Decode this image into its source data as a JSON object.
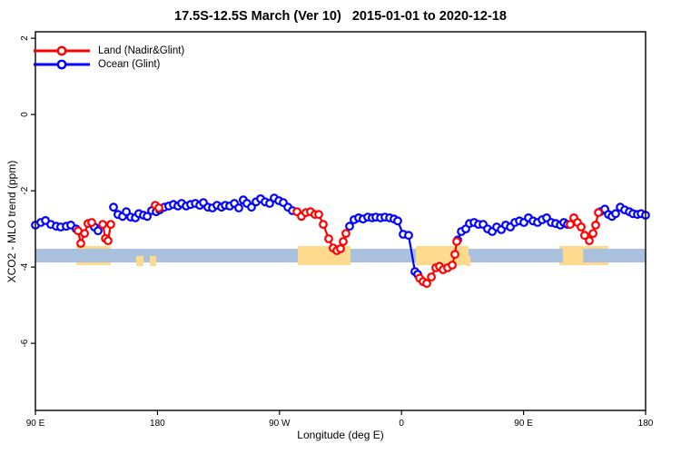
{
  "title": "17.5S-12.5S March (Ver 10)   2015-01-01 to 2020-12-18",
  "legend": {
    "items": [
      {
        "label": "Land (Nadir&Glint)",
        "color": "#ff0000"
      },
      {
        "label": "Ocean (Glint)",
        "color": "#0000ff"
      }
    ]
  },
  "chart_data": {
    "type": "line",
    "title": "17.5S-12.5S March (Ver 10)   2015-01-01 to 2020-12-18",
    "xlabel": "Longitude (deg E)",
    "ylabel": "XCO2 - MLO trend (ppm)",
    "xlim": [
      90,
      540
    ],
    "ylim": [
      -7.76,
      2.17
    ],
    "grid": false,
    "legend_position": "top-left",
    "x_ticks": [
      {
        "value": 90,
        "label": "90 E"
      },
      {
        "value": 180,
        "label": "180"
      },
      {
        "value": 270,
        "label": "90 W"
      },
      {
        "value": 360,
        "label": "0"
      },
      {
        "value": 450,
        "label": "90 E"
      },
      {
        "value": 540,
        "label": "180"
      }
    ],
    "y_ticks": [
      {
        "value": 2,
        "label": "2"
      },
      {
        "value": 0,
        "label": "0"
      },
      {
        "value": -2,
        "label": "-2"
      },
      {
        "value": -4,
        "label": "-4"
      },
      {
        "value": -6,
        "label": "-6"
      }
    ],
    "band": {
      "ocean_color": "#aac1dd",
      "land_color": "#fdda8d",
      "top": -3.52,
      "bottom": -3.88,
      "land_under": [
        [
          120.1,
          145.6
        ],
        [
          476.4,
          512.6
        ]
      ],
      "land_over": [
        [
          283.5,
          322.4
        ],
        [
          370.6,
          409.4
        ],
        [
          479.0,
          494.0
        ]
      ],
      "slivers": [
        [
          164.3,
          169.7
        ],
        [
          174.4,
          179.1
        ],
        [
          407.8,
          411.0
        ]
      ]
    },
    "series": [
      {
        "name": "Ocean (Glint)",
        "color": "#0000ff",
        "segments": [
          [
            [
              90.0,
              -2.9
            ],
            [
              94.0,
              -2.83
            ],
            [
              97.4,
              -2.78
            ],
            [
              101.4,
              -2.88
            ],
            [
              105.4,
              -2.93
            ],
            [
              108.7,
              -2.95
            ],
            [
              112.8,
              -2.93
            ],
            [
              116.1,
              -2.9
            ],
            [
              120.1,
              -3.0
            ]
          ],
          [
            [
              133.5,
              -2.95
            ],
            [
              136.2,
              -3.05
            ]
          ],
          [
            [
              147.6,
              -2.43
            ],
            [
              150.9,
              -2.62
            ],
            [
              154.3,
              -2.67
            ],
            [
              157.0,
              -2.55
            ],
            [
              160.3,
              -2.69
            ],
            [
              163.7,
              -2.71
            ],
            [
              166.3,
              -2.6
            ],
            [
              169.7,
              -2.64
            ],
            [
              172.4,
              -2.67
            ],
            [
              175.7,
              -2.52
            ],
            [
              179.1,
              -2.55
            ],
            [
              181.7,
              -2.5
            ],
            [
              185.1,
              -2.43
            ],
            [
              188.4,
              -2.4
            ],
            [
              191.8,
              -2.36
            ],
            [
              195.1,
              -2.4
            ],
            [
              197.8,
              -2.33
            ],
            [
              201.2,
              -2.4
            ],
            [
              204.5,
              -2.36
            ],
            [
              207.9,
              -2.33
            ],
            [
              211.2,
              -2.38
            ],
            [
              213.9,
              -2.31
            ],
            [
              217.2,
              -2.43
            ],
            [
              220.6,
              -2.45
            ],
            [
              223.9,
              -2.38
            ],
            [
              227.3,
              -2.43
            ],
            [
              230.0,
              -2.38
            ],
            [
              233.3,
              -2.4
            ],
            [
              236.7,
              -2.33
            ],
            [
              240.0,
              -2.45
            ],
            [
              243.3,
              -2.24
            ],
            [
              246.0,
              -2.33
            ],
            [
              249.4,
              -2.43
            ],
            [
              252.7,
              -2.29
            ],
            [
              256.1,
              -2.21
            ],
            [
              259.4,
              -2.29
            ],
            [
              262.8,
              -2.33
            ],
            [
              266.1,
              -2.19
            ],
            [
              269.5,
              -2.26
            ],
            [
              272.8,
              -2.31
            ],
            [
              276.2,
              -2.43
            ],
            [
              279.5,
              -2.52
            ]
          ],
          [
            [
              321.7,
              -2.93
            ],
            [
              325.0,
              -2.76
            ],
            [
              328.4,
              -2.71
            ],
            [
              331.7,
              -2.74
            ],
            [
              335.1,
              -2.69
            ],
            [
              338.4,
              -2.71
            ],
            [
              341.1,
              -2.69
            ],
            [
              344.5,
              -2.71
            ],
            [
              347.8,
              -2.69
            ],
            [
              351.2,
              -2.71
            ],
            [
              354.5,
              -2.74
            ],
            [
              357.2,
              -2.79
            ],
            [
              361.2,
              -3.14
            ],
            [
              365.2,
              -3.17
            ],
            [
              369.9,
              -4.12
            ],
            [
              371.9,
              -4.19
            ]
          ],
          [
            [
              401.4,
              -3.29
            ],
            [
              404.1,
              -3.07
            ],
            [
              407.4,
              -3.0
            ],
            [
              410.1,
              -2.86
            ],
            [
              413.5,
              -2.83
            ],
            [
              416.8,
              -2.88
            ],
            [
              420.2,
              -2.88
            ],
            [
              423.5,
              -3.0
            ],
            [
              426.9,
              -3.07
            ],
            [
              430.2,
              -2.95
            ],
            [
              433.6,
              -3.02
            ],
            [
              436.9,
              -2.9
            ],
            [
              440.3,
              -2.95
            ],
            [
              443.6,
              -2.83
            ],
            [
              447.0,
              -2.79
            ],
            [
              450.3,
              -2.83
            ],
            [
              453.6,
              -2.71
            ],
            [
              457.0,
              -2.79
            ],
            [
              460.3,
              -2.83
            ],
            [
              463.7,
              -2.76
            ],
            [
              467.0,
              -2.71
            ],
            [
              470.4,
              -2.83
            ],
            [
              473.7,
              -2.86
            ],
            [
              477.1,
              -2.9
            ],
            [
              479.7,
              -2.83
            ],
            [
              482.4,
              -2.88
            ]
          ],
          [
            [
              506.5,
              -2.55
            ],
            [
              509.9,
              -2.48
            ],
            [
              512.6,
              -2.62
            ],
            [
              515.2,
              -2.67
            ],
            [
              517.9,
              -2.6
            ],
            [
              521.3,
              -2.43
            ],
            [
              524.6,
              -2.5
            ],
            [
              528.0,
              -2.55
            ],
            [
              530.7,
              -2.6
            ],
            [
              534.0,
              -2.62
            ],
            [
              536.7,
              -2.6
            ],
            [
              540.0,
              -2.64
            ]
          ]
        ]
      },
      {
        "name": "Land (Nadir&Glint)",
        "color": "#ff0000",
        "segments": [
          [
            [
              121.5,
              -3.05
            ],
            [
              123.5,
              -3.38
            ],
            [
              126.2,
              -3.12
            ],
            [
              128.8,
              -2.86
            ],
            [
              131.5,
              -2.83
            ]
          ],
          [
            [
              139.6,
              -2.88
            ],
            [
              141.6,
              -3.25
            ],
            [
              143.6,
              -3.31
            ],
            [
              145.6,
              -2.88
            ]
          ],
          [
            [
              178.4,
              -2.38
            ],
            [
              181.1,
              -2.45
            ]
          ],
          [
            [
              282.9,
              -2.55
            ],
            [
              286.2,
              -2.67
            ],
            [
              289.5,
              -2.57
            ],
            [
              292.9,
              -2.55
            ],
            [
              296.2,
              -2.62
            ],
            [
              298.9,
              -2.62
            ],
            [
              302.3,
              -2.88
            ],
            [
              306.3,
              -3.26
            ],
            [
              309.6,
              -3.5
            ],
            [
              312.3,
              -3.57
            ],
            [
              315.0,
              -3.52
            ],
            [
              317.0,
              -3.33
            ],
            [
              319.0,
              -3.12
            ]
          ],
          [
            [
              373.3,
              -4.29
            ],
            [
              375.9,
              -4.38
            ],
            [
              378.6,
              -4.43
            ],
            [
              382.0,
              -4.26
            ],
            [
              385.3,
              -4.02
            ],
            [
              388.0,
              -3.98
            ],
            [
              390.7,
              -4.07
            ],
            [
              394.0,
              -4.02
            ],
            [
              397.4,
              -3.95
            ],
            [
              399.4,
              -3.67
            ],
            [
              400.7,
              -3.33
            ]
          ],
          [
            [
              484.4,
              -2.88
            ],
            [
              487.1,
              -2.71
            ],
            [
              489.8,
              -2.83
            ],
            [
              492.5,
              -2.95
            ],
            [
              495.1,
              -3.17
            ],
            [
              498.5,
              -3.31
            ],
            [
              501.2,
              -3.12
            ],
            [
              503.2,
              -2.9
            ],
            [
              505.2,
              -2.57
            ]
          ]
        ]
      }
    ]
  }
}
